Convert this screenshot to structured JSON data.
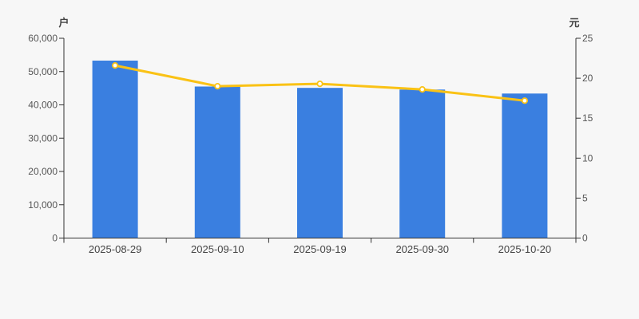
{
  "chart_data": {
    "type": "bar+line",
    "title": "",
    "categories": [
      "2025-08-29",
      "2025-09-10",
      "2025-09-19",
      "2025-09-30",
      "2025-10-20"
    ],
    "series": [
      {
        "name": "户",
        "type": "bar",
        "axis": "left",
        "values": [
          53300,
          45500,
          45100,
          44600,
          43400
        ],
        "color": "#3a7fe0"
      },
      {
        "name": "元",
        "type": "line",
        "axis": "right",
        "values": [
          21.6,
          19.0,
          19.3,
          18.6,
          17.2
        ],
        "color": "#fac215",
        "marker_fill": "#ffffff"
      }
    ],
    "left_axis": {
      "label": "户",
      "min": 0,
      "max": 60000,
      "tick_step": 10000,
      "tick_labels": [
        "0",
        "10,000",
        "20,000",
        "30,000",
        "40,000",
        "50,000",
        "60,000"
      ]
    },
    "right_axis": {
      "label": "元",
      "min": 0,
      "max": 25,
      "tick_step": 5,
      "tick_labels": [
        "0",
        "5",
        "10",
        "15",
        "20",
        "25"
      ]
    },
    "grid": false,
    "legend": false,
    "colors": {
      "background": "#f7f7f7",
      "axis_line": "#333333",
      "tick_text": "#555555",
      "date_text": "#444444"
    }
  }
}
